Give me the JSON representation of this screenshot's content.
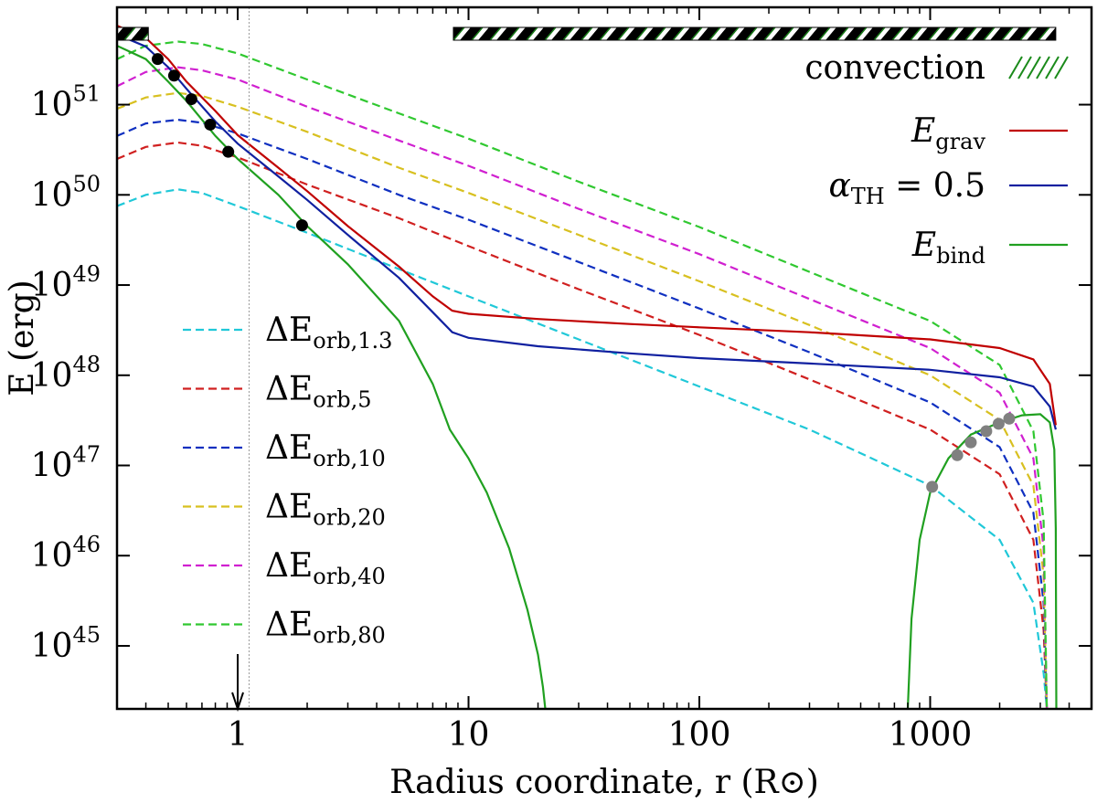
{
  "chart_data": {
    "type": "line",
    "xlabel": "Radius coordinate, r (R⊙)",
    "ylabel": "E (erg)",
    "xscale": "log",
    "yscale": "log",
    "xlim": [
      0.3,
      5000
    ],
    "ylim": [
      2e+44,
      1.2e+52
    ],
    "xticks": [
      {
        "value": 1,
        "label": "1"
      },
      {
        "value": 10,
        "label": "10"
      },
      {
        "value": 100,
        "label": "100"
      },
      {
        "value": 1000,
        "label": "1000"
      }
    ],
    "yticks": [
      {
        "value": 1e+45,
        "base": "10",
        "exp": "45"
      },
      {
        "value": 1e+46,
        "base": "10",
        "exp": "46"
      },
      {
        "value": 1e+47,
        "base": "10",
        "exp": "47"
      },
      {
        "value": 1e+48,
        "base": "10",
        "exp": "48"
      },
      {
        "value": 1e+49,
        "base": "10",
        "exp": "49"
      },
      {
        "value": 1e+50,
        "base": "10",
        "exp": "50"
      },
      {
        "value": 1e+51,
        "base": "10",
        "exp": "51"
      }
    ],
    "legend_left_placement": "lower-left",
    "legend_right_placement": "upper-right",
    "series": [
      {
        "name": "E_grav",
        "label_main": "E",
        "label_sub": "grav",
        "color": "#c00000",
        "style": "solid",
        "x": [
          0.3,
          0.4,
          0.5,
          0.6,
          0.8,
          1.0,
          1.5,
          2,
          3,
          5,
          7,
          8.5,
          10,
          20,
          50,
          100,
          300,
          1000,
          2000,
          2800,
          3300,
          3500
        ],
        "y": [
          7.5e+51,
          5.5e+51,
          3.2e+51,
          1.8e+51,
          8.5e+50,
          4.6e+50,
          2e+50,
          1.1e+50,
          4.5e+49,
          1.6e+49,
          7.5e+48,
          5.2e+48,
          4.8e+48,
          4.2e+48,
          3.7e+48,
          3.4e+48,
          3e+48,
          2.5e+48,
          2e+48,
          1.5e+48,
          8e+47,
          2.8e+47
        ]
      },
      {
        "name": "alpha_TH = 0.5",
        "label_main": "α",
        "label_sub": "TH",
        "label_suffix": " = 0.5",
        "color": "#1020a0",
        "style": "solid",
        "x": [
          0.3,
          0.4,
          0.5,
          0.6,
          0.8,
          1.0,
          1.5,
          2,
          3,
          5,
          7,
          8.5,
          10,
          20,
          50,
          100,
          300,
          1000,
          2000,
          2800,
          3300,
          3500
        ],
        "y": [
          6e+51,
          4.4e+51,
          2.6e+51,
          1.5e+51,
          6.5e+50,
          3.7e+50,
          1.6e+50,
          8.8e+49,
          3.6e+49,
          1.2e+49,
          5e+48,
          3e+48,
          2.6e+48,
          2.1e+48,
          1.75e+48,
          1.55e+48,
          1.35e+48,
          1.15e+48,
          9.5e+47,
          7.5e+47,
          4.5e+47,
          2.5e+47
        ]
      },
      {
        "name": "E_bind",
        "label_main": "E",
        "label_sub": "bind",
        "color": "#20a020",
        "style": "solid",
        "x": [
          0.3,
          0.4,
          0.5,
          0.6,
          0.8,
          1.0,
          1.5,
          2,
          3,
          5,
          7,
          8.3,
          10,
          12,
          15,
          18,
          20,
          21,
          21.5
        ],
        "y": [
          4.5e+51,
          3.2e+51,
          1.8e+51,
          1.1e+51,
          4.5e+50,
          2.5e+50,
          1e+50,
          4.5e+49,
          1.7e+49,
          4e+48,
          8e+47,
          2.5e+47,
          1.2e+47,
          5e+46,
          1.2e+46,
          2.5e+45,
          8e+44,
          3.5e+44,
          2e+44
        ],
        "x2": [
          800,
          830,
          900,
          1000,
          1200,
          1500,
          2000,
          2500,
          3000,
          3300,
          3450,
          3500,
          3520
        ],
        "y2": [
          2e+44,
          2e+45,
          1.5e+46,
          5e+46,
          1.2e+47,
          2.2e+47,
          3e+47,
          3.6e+47,
          3.7e+47,
          3e+47,
          1.5e+47,
          2e+46,
          2e+44
        ]
      },
      {
        "name": "dE_orb_1.3",
        "label_main": "ΔE",
        "label_sub": "orb,1.3",
        "color": "#20c8d8",
        "style": "dashed",
        "x": [
          0.3,
          0.4,
          0.55,
          0.7,
          1.0,
          2,
          5,
          10,
          30,
          100,
          300,
          1000,
          2000,
          2800,
          3100,
          3200
        ],
        "y": [
          7.5e+49,
          1e+50,
          1.15e+50,
          1.05e+50,
          7.5e+49,
          3.8e+49,
          1.5e+49,
          7.5e+48,
          2.5e+48,
          7.5e+47,
          2.5e+47,
          6e+46,
          1.5e+46,
          3e+45,
          5e+44,
          2e+44
        ]
      },
      {
        "name": "dE_orb_5",
        "label_main": "ΔE",
        "label_sub": "orb,5",
        "color": "#d02020",
        "style": "dashed",
        "x": [
          0.3,
          0.4,
          0.55,
          0.7,
          1.0,
          2,
          5,
          10,
          30,
          100,
          300,
          1000,
          2000,
          2800,
          3100,
          3200
        ],
        "y": [
          2.5e+50,
          3.4e+50,
          3.8e+50,
          3.5e+50,
          2.6e+50,
          1.3e+50,
          5.5e+49,
          2.7e+49,
          9e+48,
          2.8e+48,
          9e+47,
          2.5e+47,
          8e+46,
          1.5e+46,
          1.5e+45,
          2e+44
        ]
      },
      {
        "name": "dE_orb_10",
        "label_main": "ΔE",
        "label_sub": "orb,10",
        "color": "#1030c0",
        "style": "dashed",
        "x": [
          0.3,
          0.4,
          0.55,
          0.7,
          1.0,
          2,
          5,
          10,
          30,
          100,
          300,
          1000,
          2000,
          2800,
          3100,
          3200
        ],
        "y": [
          4.5e+50,
          6.2e+50,
          6.8e+50,
          6.3e+50,
          4.8e+50,
          2.5e+50,
          1e+50,
          5.3e+49,
          1.8e+49,
          5.5e+48,
          1.8e+48,
          5e+47,
          1.6e+47,
          3e+46,
          3e+45,
          2e+44
        ]
      },
      {
        "name": "dE_orb_20",
        "label_main": "ΔE",
        "label_sub": "orb,20",
        "color": "#d8c020",
        "style": "dashed",
        "x": [
          0.3,
          0.4,
          0.55,
          0.7,
          1.0,
          2,
          5,
          10,
          30,
          100,
          300,
          1000,
          2000,
          2800,
          3100,
          3200
        ],
        "y": [
          9e+50,
          1.2e+51,
          1.35e+51,
          1.25e+51,
          9.5e+50,
          5e+50,
          2e+50,
          1.05e+50,
          3.6e+49,
          1.1e+49,
          3.6e+48,
          1e+48,
          3.2e+47,
          6e+46,
          6e+45,
          2e+44
        ]
      },
      {
        "name": "dE_orb_40",
        "label_main": "ΔE",
        "label_sub": "orb,40",
        "color": "#d020d0",
        "style": "dashed",
        "x": [
          0.3,
          0.4,
          0.55,
          0.7,
          1.0,
          2,
          5,
          10,
          30,
          100,
          300,
          1000,
          2000,
          2800,
          3100,
          3200
        ],
        "y": [
          1.6e+51,
          2.3e+51,
          2.6e+51,
          2.4e+51,
          1.9e+51,
          9.5e+50,
          4e+50,
          2.1e+50,
          7e+49,
          2.2e+49,
          7e+48,
          2e+48,
          6.4e+47,
          1.2e+47,
          1.2e+46,
          2e+44
        ]
      },
      {
        "name": "dE_orb_80",
        "label_main": "ΔE",
        "label_sub": "orb,80",
        "color": "#30c830",
        "style": "dashed",
        "x": [
          0.3,
          0.4,
          0.55,
          0.7,
          1.0,
          2,
          5,
          10,
          30,
          100,
          300,
          1000,
          2000,
          2800,
          3100,
          3200
        ],
        "y": [
          3.2e+51,
          4.5e+51,
          5e+51,
          4.7e+51,
          3.7e+51,
          1.9e+51,
          8e+50,
          4.2e+50,
          1.4e+50,
          4.4e+49,
          1.4e+49,
          4e+48,
          1.3e+48,
          2.4e+47,
          2.4e+46,
          2e+44
        ]
      }
    ],
    "markers": [
      {
        "x": 0.45,
        "y": 3.2e+51,
        "color": "#000000"
      },
      {
        "x": 0.53,
        "y": 2.1e+51,
        "color": "#000000"
      },
      {
        "x": 0.63,
        "y": 1.15e+51,
        "color": "#000000"
      },
      {
        "x": 0.76,
        "y": 6e+50,
        "color": "#000000"
      },
      {
        "x": 0.91,
        "y": 3e+50,
        "color": "#000000"
      },
      {
        "x": 1.9,
        "y": 4.6e+49,
        "color": "#000000"
      },
      {
        "x": 1020,
        "y": 5.8e+46,
        "color": "#808080"
      },
      {
        "x": 1310,
        "y": 1.3e+47,
        "color": "#808080"
      },
      {
        "x": 1500,
        "y": 1.8e+47,
        "color": "#808080"
      },
      {
        "x": 1750,
        "y": 2.4e+47,
        "color": "#808080"
      },
      {
        "x": 1980,
        "y": 2.9e+47,
        "color": "#808080"
      },
      {
        "x": 2200,
        "y": 3.3e+47,
        "color": "#808080"
      }
    ],
    "convection_zones": [
      [
        0.3,
        0.41
      ],
      [
        8.6,
        3500
      ]
    ],
    "convection_label": "convection",
    "reference_line_x": 1.12,
    "arrow_x": 1.0,
    "legend_right_order": [
      "convection",
      "E_grav",
      "alpha_TH = 0.5",
      "E_bind"
    ],
    "legend_left_order": [
      "dE_orb_1.3",
      "dE_orb_5",
      "dE_orb_10",
      "dE_orb_20",
      "dE_orb_40",
      "dE_orb_80"
    ]
  }
}
